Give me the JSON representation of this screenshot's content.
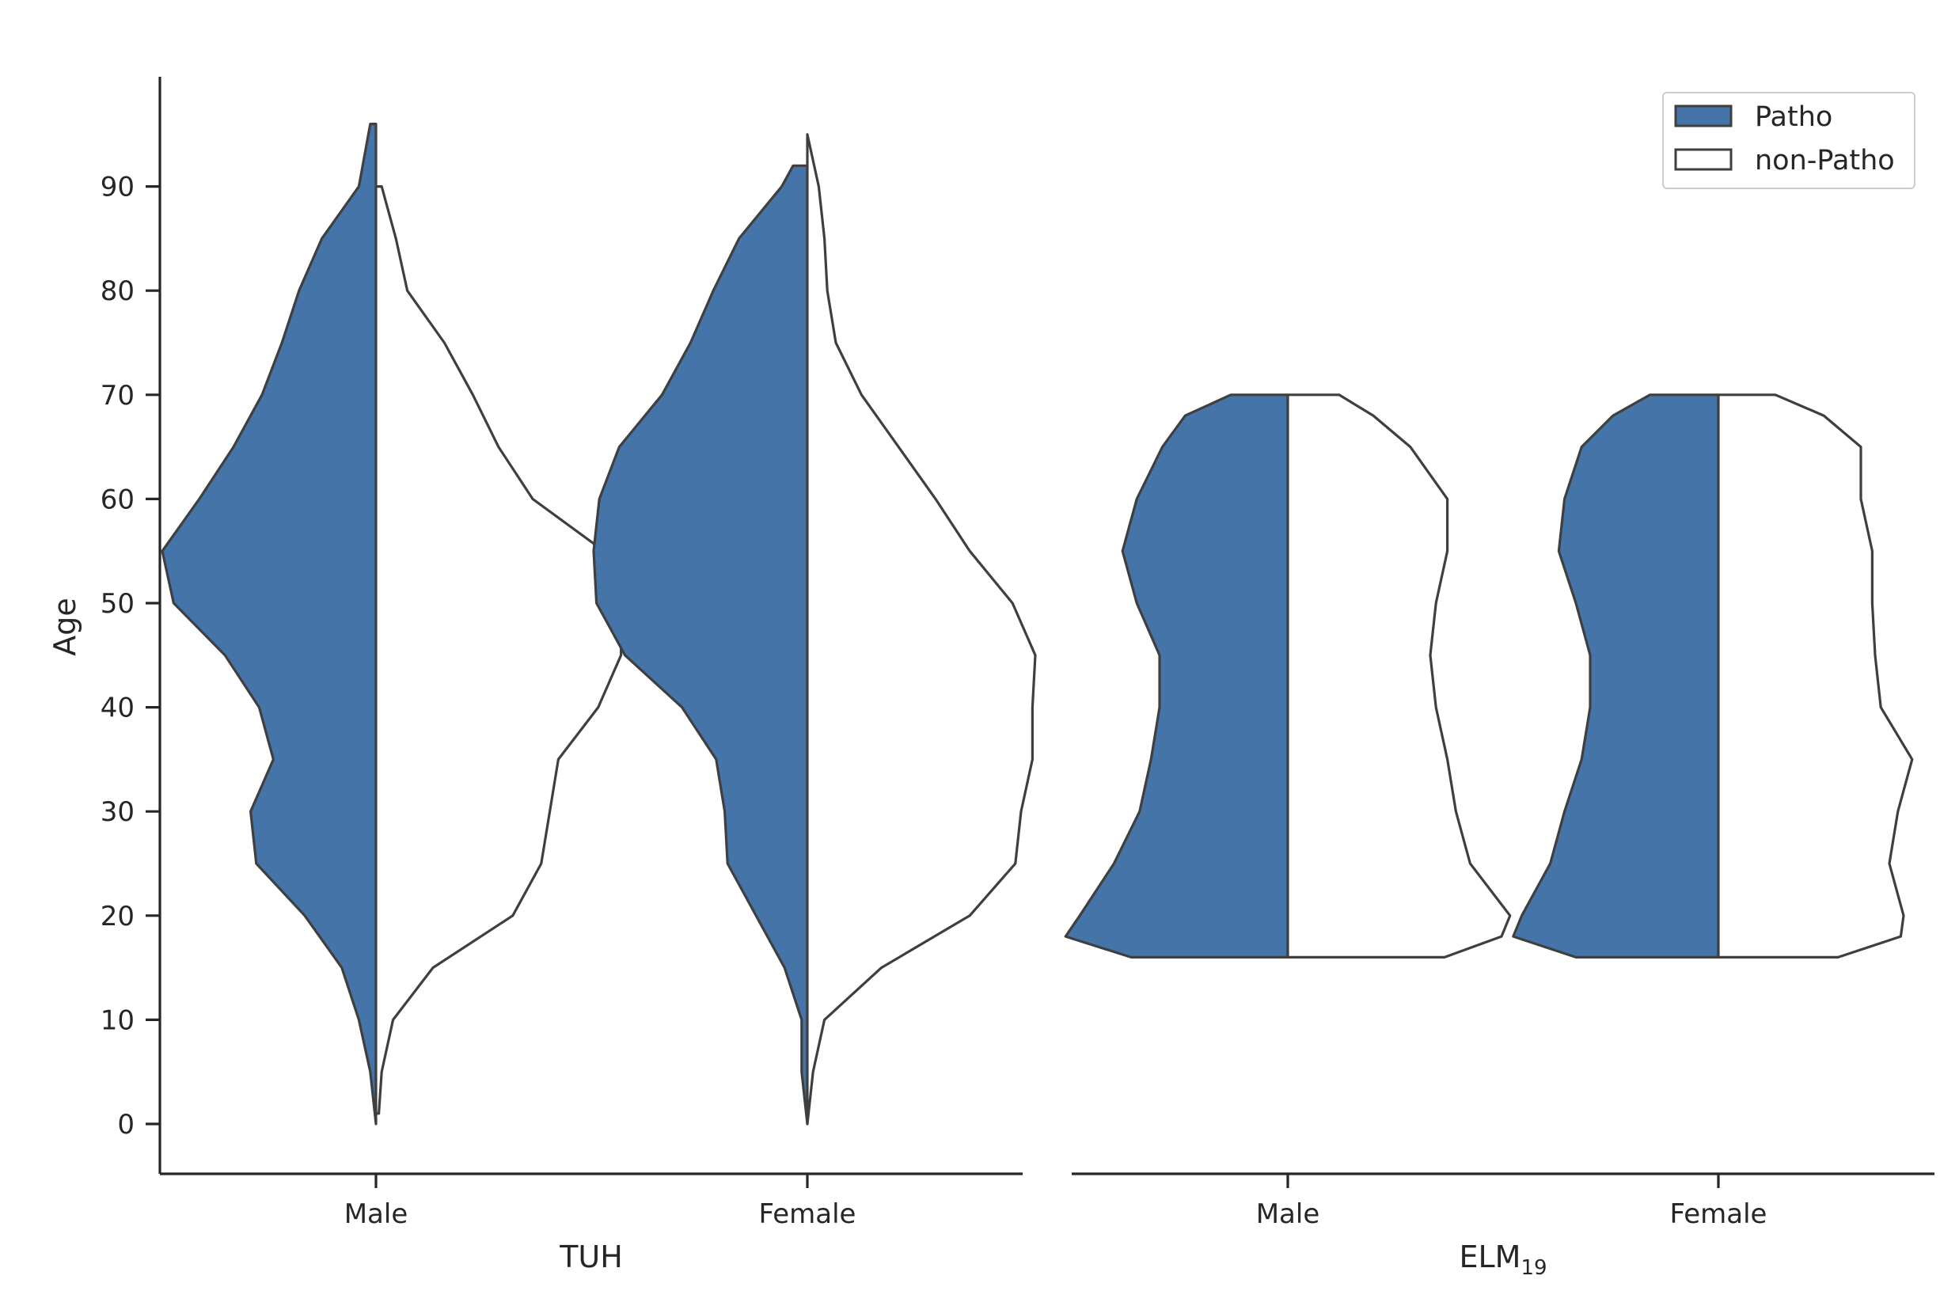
{
  "colors": {
    "patho": "#4575a8",
    "non_patho": "#ffffff",
    "outline": "#3f3f3f",
    "axis": "#262626"
  },
  "chart_data": {
    "type": "split-violin",
    "ylabel": "Age",
    "yticks": [
      0,
      10,
      20,
      30,
      40,
      50,
      60,
      70,
      80,
      90
    ],
    "ylim": [
      -5,
      101
    ],
    "legend": {
      "placement": "top-right",
      "entries": [
        {
          "label": "Patho",
          "color": "#4575a8"
        },
        {
          "label": "non-Patho",
          "color": "#ffffff"
        }
      ]
    },
    "panels": [
      {
        "xlabel": "TUH",
        "xlabel_sub": "",
        "categories": [
          "Male",
          "Female"
        ],
        "violins": [
          {
            "category": "Male",
            "patho": {
              "min": 0,
              "max": 96,
              "half_width_by_age": [
                [
                  0,
                  0.0
                ],
                [
                  5,
                  0.02
                ],
                [
                  10,
                  0.06
                ],
                [
                  15,
                  0.12
                ],
                [
                  20,
                  0.25
                ],
                [
                  25,
                  0.42
                ],
                [
                  30,
                  0.44
                ],
                [
                  35,
                  0.36
                ],
                [
                  40,
                  0.41
                ],
                [
                  45,
                  0.53
                ],
                [
                  50,
                  0.71
                ],
                [
                  55,
                  0.75
                ],
                [
                  60,
                  0.62
                ],
                [
                  65,
                  0.5
                ],
                [
                  70,
                  0.4
                ],
                [
                  75,
                  0.33
                ],
                [
                  80,
                  0.27
                ],
                [
                  85,
                  0.19
                ],
                [
                  90,
                  0.06
                ],
                [
                  96,
                  0.02
                ]
              ]
            },
            "non_patho": {
              "min": 1,
              "max": 90,
              "half_width_by_age": [
                [
                  1,
                  0.01
                ],
                [
                  5,
                  0.02
                ],
                [
                  10,
                  0.06
                ],
                [
                  15,
                  0.2
                ],
                [
                  20,
                  0.48
                ],
                [
                  25,
                  0.58
                ],
                [
                  30,
                  0.61
                ],
                [
                  35,
                  0.64
                ],
                [
                  40,
                  0.78
                ],
                [
                  45,
                  0.86
                ],
                [
                  50,
                  0.86
                ],
                [
                  55,
                  0.8
                ],
                [
                  60,
                  0.55
                ],
                [
                  65,
                  0.43
                ],
                [
                  70,
                  0.34
                ],
                [
                  75,
                  0.24
                ],
                [
                  80,
                  0.11
                ],
                [
                  85,
                  0.07
                ],
                [
                  90,
                  0.02
                ]
              ]
            }
          },
          {
            "category": "Female",
            "patho": {
              "min": 0,
              "max": 92,
              "half_width_by_age": [
                [
                  0,
                  0.0
                ],
                [
                  5,
                  0.02
                ],
                [
                  10,
                  0.02
                ],
                [
                  15,
                  0.08
                ],
                [
                  20,
                  0.18
                ],
                [
                  25,
                  0.28
                ],
                [
                  30,
                  0.29
                ],
                [
                  35,
                  0.32
                ],
                [
                  40,
                  0.44
                ],
                [
                  45,
                  0.64
                ],
                [
                  50,
                  0.74
                ],
                [
                  55,
                  0.75
                ],
                [
                  60,
                  0.73
                ],
                [
                  65,
                  0.66
                ],
                [
                  70,
                  0.51
                ],
                [
                  75,
                  0.41
                ],
                [
                  80,
                  0.33
                ],
                [
                  85,
                  0.24
                ],
                [
                  90,
                  0.09
                ],
                [
                  92,
                  0.05
                ]
              ]
            },
            "non_patho": {
              "min": 0,
              "max": 95,
              "half_width_by_age": [
                [
                  0,
                  0.0
                ],
                [
                  5,
                  0.02
                ],
                [
                  10,
                  0.06
                ],
                [
                  15,
                  0.26
                ],
                [
                  20,
                  0.57
                ],
                [
                  25,
                  0.73
                ],
                [
                  30,
                  0.75
                ],
                [
                  35,
                  0.79
                ],
                [
                  40,
                  0.79
                ],
                [
                  45,
                  0.8
                ],
                [
                  50,
                  0.72
                ],
                [
                  55,
                  0.57
                ],
                [
                  60,
                  0.45
                ],
                [
                  65,
                  0.32
                ],
                [
                  70,
                  0.19
                ],
                [
                  75,
                  0.1
                ],
                [
                  80,
                  0.07
                ],
                [
                  85,
                  0.06
                ],
                [
                  90,
                  0.04
                ],
                [
                  95,
                  0.0
                ]
              ]
            }
          }
        ]
      },
      {
        "xlabel": "ELM",
        "xlabel_sub": "19",
        "categories": [
          "Male",
          "Female"
        ],
        "violins": [
          {
            "category": "Male",
            "patho": {
              "min": 16,
              "max": 70,
              "half_width_by_age": [
                [
                  16,
                  0.55
                ],
                [
                  18,
                  0.78
                ],
                [
                  20,
                  0.73
                ],
                [
                  25,
                  0.61
                ],
                [
                  30,
                  0.52
                ],
                [
                  35,
                  0.48
                ],
                [
                  40,
                  0.45
                ],
                [
                  45,
                  0.45
                ],
                [
                  50,
                  0.53
                ],
                [
                  55,
                  0.58
                ],
                [
                  60,
                  0.53
                ],
                [
                  65,
                  0.44
                ],
                [
                  68,
                  0.36
                ],
                [
                  70,
                  0.2
                ]
              ]
            },
            "non_patho": {
              "min": 16,
              "max": 70,
              "half_width_by_age": [
                [
                  16,
                  0.55
                ],
                [
                  18,
                  0.75
                ],
                [
                  20,
                  0.78
                ],
                [
                  25,
                  0.64
                ],
                [
                  30,
                  0.59
                ],
                [
                  35,
                  0.56
                ],
                [
                  40,
                  0.52
                ],
                [
                  45,
                  0.5
                ],
                [
                  50,
                  0.52
                ],
                [
                  55,
                  0.56
                ],
                [
                  60,
                  0.56
                ],
                [
                  65,
                  0.43
                ],
                [
                  68,
                  0.3
                ],
                [
                  70,
                  0.18
                ]
              ]
            }
          },
          {
            "category": "Female",
            "patho": {
              "min": 16,
              "max": 70,
              "half_width_by_age": [
                [
                  16,
                  0.5
                ],
                [
                  18,
                  0.72
                ],
                [
                  20,
                  0.69
                ],
                [
                  25,
                  0.59
                ],
                [
                  30,
                  0.54
                ],
                [
                  35,
                  0.48
                ],
                [
                  40,
                  0.45
                ],
                [
                  45,
                  0.45
                ],
                [
                  50,
                  0.5
                ],
                [
                  55,
                  0.56
                ],
                [
                  60,
                  0.54
                ],
                [
                  65,
                  0.48
                ],
                [
                  68,
                  0.37
                ],
                [
                  70,
                  0.24
                ]
              ]
            },
            "non_patho": {
              "min": 16,
              "max": 70,
              "half_width_by_age": [
                [
                  16,
                  0.42
                ],
                [
                  18,
                  0.64
                ],
                [
                  20,
                  0.65
                ],
                [
                  25,
                  0.6
                ],
                [
                  30,
                  0.63
                ],
                [
                  35,
                  0.68
                ],
                [
                  40,
                  0.57
                ],
                [
                  45,
                  0.55
                ],
                [
                  50,
                  0.54
                ],
                [
                  55,
                  0.54
                ],
                [
                  60,
                  0.5
                ],
                [
                  65,
                  0.5
                ],
                [
                  68,
                  0.37
                ],
                [
                  70,
                  0.2
                ]
              ]
            }
          }
        ]
      }
    ]
  }
}
